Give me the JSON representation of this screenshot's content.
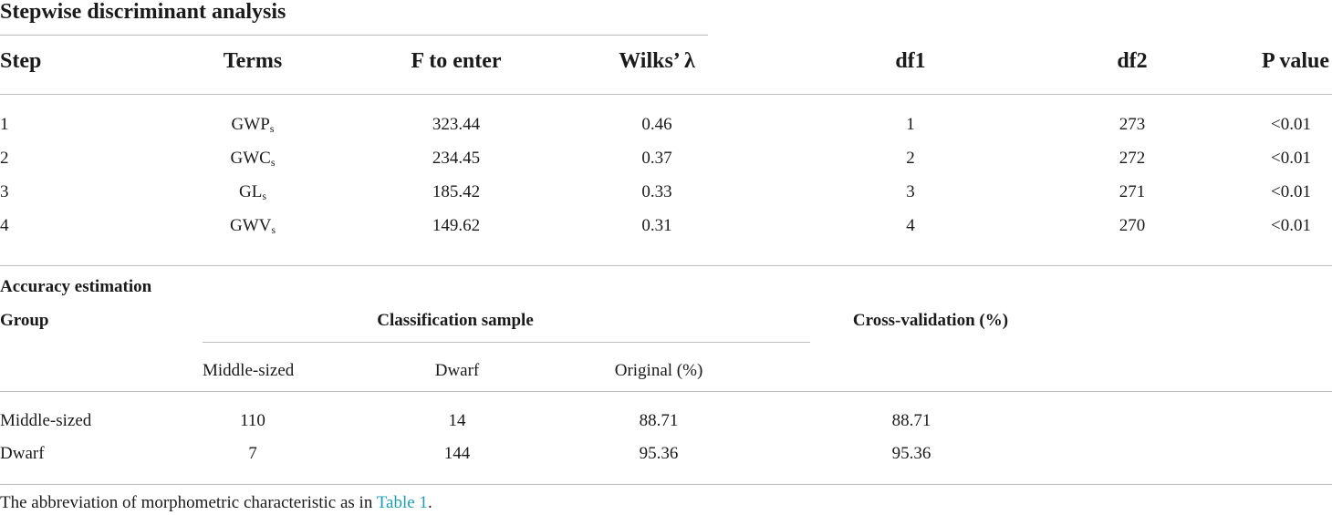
{
  "title": "Stepwise discriminant analysis",
  "stepwise": {
    "headers": {
      "step": "Step",
      "terms": "Terms",
      "f_to_enter": "F to enter",
      "wilks": "Wilks’ λ",
      "df1": "df1",
      "df2": "df2",
      "p_value": "P value"
    },
    "rows": [
      {
        "step": "1",
        "term_base": "GWP",
        "term_sub": "s",
        "f": "323.44",
        "wilks": "0.46",
        "df1": "1",
        "df2": "273",
        "p": "<0.01"
      },
      {
        "step": "2",
        "term_base": "GWC",
        "term_sub": "s",
        "f": "234.45",
        "wilks": "0.37",
        "df1": "2",
        "df2": "272",
        "p": "<0.01"
      },
      {
        "step": "3",
        "term_base": "GL",
        "term_sub": "s",
        "f": "185.42",
        "wilks": "0.33",
        "df1": "3",
        "df2": "271",
        "p": "<0.01"
      },
      {
        "step": "4",
        "term_base": "GWV",
        "term_sub": "s",
        "f": "149.62",
        "wilks": "0.31",
        "df1": "4",
        "df2": "270",
        "p": "<0.01"
      }
    ]
  },
  "accuracy": {
    "section_label": "Accuracy estimation",
    "headers": {
      "group": "Group",
      "classification_sample": "Classification sample",
      "cross_validation": "Cross-validation (%)",
      "middle_sized": "Middle-sized",
      "dwarf": "Dwarf",
      "original": "Original (%)"
    },
    "rows": [
      {
        "group": "Middle-sized",
        "middle_sized": "110",
        "dwarf": "14",
        "original": "88.71",
        "cross_validation": "88.71"
      },
      {
        "group": "Dwarf",
        "middle_sized": "7",
        "dwarf": "144",
        "original": "95.36",
        "cross_validation": "95.36"
      }
    ]
  },
  "footnote": {
    "text": "The abbreviation of morphometric characteristic as in ",
    "link": "Table 1",
    "end": "."
  }
}
